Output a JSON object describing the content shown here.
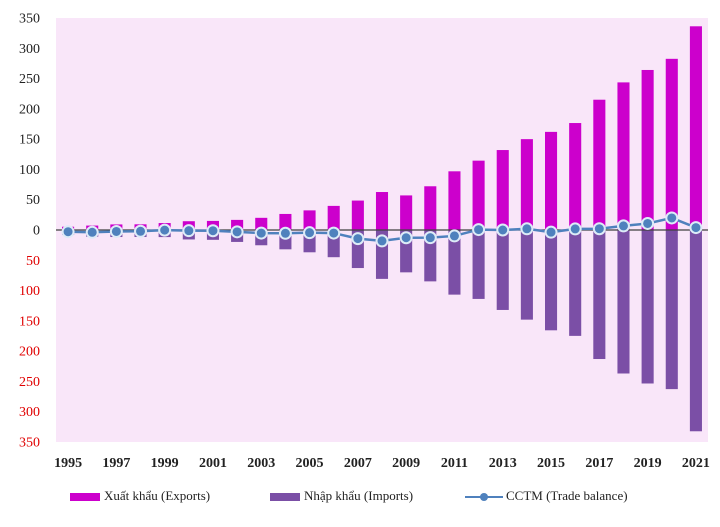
{
  "chart_data": {
    "type": "bar",
    "title": "",
    "xlabel": "",
    "ylabel": "",
    "ylim": [
      -350,
      350
    ],
    "y_ticks": [
      350,
      300,
      250,
      200,
      150,
      100,
      50,
      0,
      -50,
      -100,
      -150,
      -200,
      -250,
      -300,
      -350
    ],
    "y_tick_labels": [
      "350",
      "300",
      "250",
      "200",
      "150",
      "100",
      "50",
      "0",
      "50",
      "100",
      "150",
      "200",
      "250",
      "300",
      "350"
    ],
    "x_tick_labels": [
      "1995",
      "1997",
      "1999",
      "2001",
      "2003",
      "2005",
      "2007",
      "2009",
      "2011",
      "2013",
      "2015",
      "2017",
      "2019",
      "2021"
    ],
    "categories": [
      "1995",
      "1996",
      "1997",
      "1998",
      "1999",
      "2000",
      "2001",
      "2002",
      "2003",
      "2004",
      "2005",
      "2006",
      "2007",
      "2008",
      "2009",
      "2010",
      "2011",
      "2012",
      "2013",
      "2014",
      "2015",
      "2016",
      "2017",
      "2018",
      "2019",
      "2020",
      "2021"
    ],
    "series": [
      {
        "name": "Xuất khẩu (Exports)",
        "kind": "bar",
        "color": "#CC00CC",
        "values": [
          5.4,
          7.3,
          9.2,
          9.4,
          11.5,
          14.5,
          15.0,
          16.7,
          20.1,
          26.5,
          32.4,
          39.8,
          48.6,
          62.7,
          57.1,
          72.2,
          96.9,
          114.5,
          132.0,
          150.0,
          162.0,
          176.6,
          215.1,
          243.7,
          264.2,
          282.6,
          336.3
        ]
      },
      {
        "name": "Nhập khẩu (Imports)",
        "kind": "bar",
        "color": "#7B4FA6",
        "values": [
          -8.2,
          -11.1,
          -11.6,
          -11.5,
          -11.7,
          -15.6,
          -16.2,
          -19.7,
          -25.2,
          -31.9,
          -36.8,
          -44.9,
          -62.8,
          -80.7,
          -69.9,
          -84.8,
          -106.7,
          -113.8,
          -132.0,
          -148.0,
          -165.6,
          -174.8,
          -213.0,
          -236.9,
          -253.4,
          -262.7,
          -332.3
        ]
      },
      {
        "name": "CCTM (Trade balance)",
        "kind": "line",
        "color": "#4F81BD",
        "values": [
          -2.8,
          -3.8,
          -2.4,
          -2.1,
          -0.2,
          -1.1,
          -1.2,
          -3.0,
          -5.1,
          -5.4,
          -4.4,
          -5.1,
          -14.2,
          -18.0,
          -12.8,
          -12.6,
          -9.8,
          0.7,
          0.0,
          2.0,
          -3.6,
          1.8,
          2.1,
          6.8,
          10.8,
          19.9,
          4.0
        ]
      }
    ],
    "grid": false,
    "legend": "bottom"
  }
}
